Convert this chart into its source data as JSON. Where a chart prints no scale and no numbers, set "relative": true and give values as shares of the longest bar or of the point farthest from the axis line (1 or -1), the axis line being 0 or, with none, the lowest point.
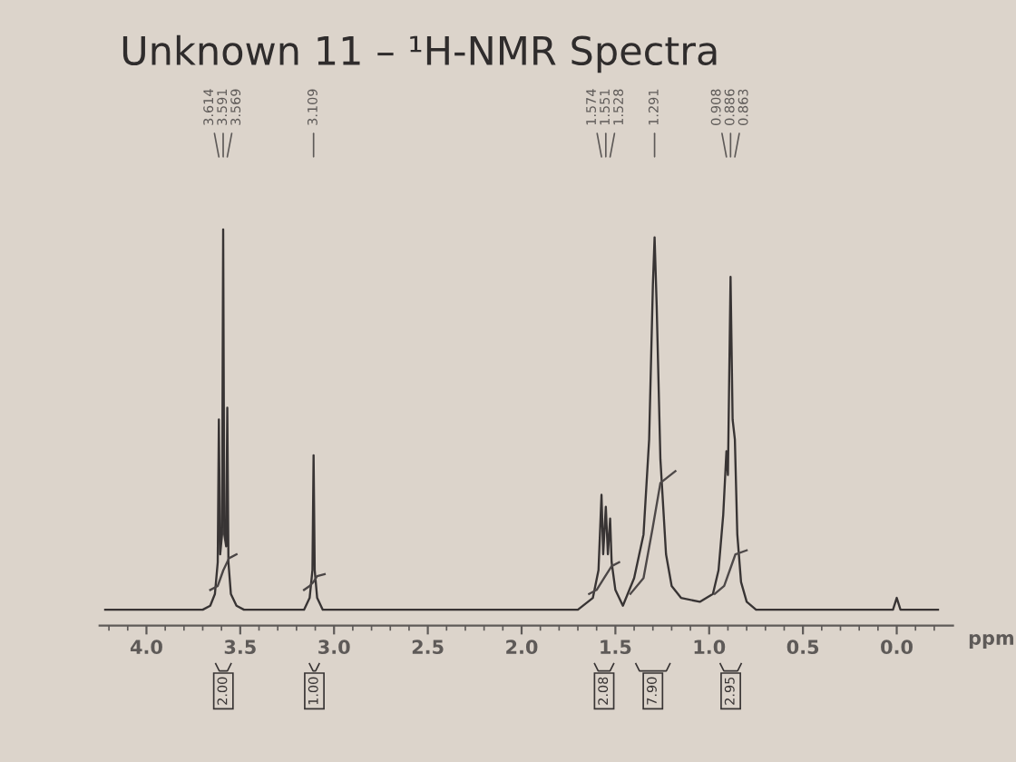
{
  "chart_data": {
    "type": "line",
    "title": "Unknown 11 – ¹H-NMR Spectra",
    "xlabel": "ppm",
    "relative": true,
    "xlim": [
      4.25,
      -0.3
    ],
    "xticks": [
      {
        "value": 4.2,
        "label": null
      },
      {
        "value": 4.1,
        "label": null
      },
      {
        "value": 4.0,
        "label": "4.0"
      },
      {
        "value": 3.9,
        "label": null
      },
      {
        "value": 3.8,
        "label": null
      },
      {
        "value": 3.7,
        "label": null
      },
      {
        "value": 3.6,
        "label": null
      },
      {
        "value": 3.5,
        "label": "3.5"
      },
      {
        "value": 3.4,
        "label": null
      },
      {
        "value": 3.3,
        "label": null
      },
      {
        "value": 3.2,
        "label": null
      },
      {
        "value": 3.1,
        "label": null
      },
      {
        "value": 3.0,
        "label": "3.0"
      },
      {
        "value": 2.9,
        "label": null
      },
      {
        "value": 2.8,
        "label": null
      },
      {
        "value": 2.7,
        "label": null
      },
      {
        "value": 2.6,
        "label": null
      },
      {
        "value": 2.5,
        "label": "2.5"
      },
      {
        "value": 2.4,
        "label": null
      },
      {
        "value": 2.3,
        "label": null
      },
      {
        "value": 2.2,
        "label": null
      },
      {
        "value": 2.1,
        "label": null
      },
      {
        "value": 2.0,
        "label": "2.0"
      },
      {
        "value": 1.9,
        "label": null
      },
      {
        "value": 1.8,
        "label": null
      },
      {
        "value": 1.7,
        "label": null
      },
      {
        "value": 1.6,
        "label": null
      },
      {
        "value": 1.5,
        "label": "1.5"
      },
      {
        "value": 1.4,
        "label": null
      },
      {
        "value": 1.3,
        "label": null
      },
      {
        "value": 1.2,
        "label": null
      },
      {
        "value": 1.1,
        "label": null
      },
      {
        "value": 1.0,
        "label": "1.0"
      },
      {
        "value": 0.9,
        "label": null
      },
      {
        "value": 0.8,
        "label": null
      },
      {
        "value": 0.7,
        "label": null
      },
      {
        "value": 0.6,
        "label": null
      },
      {
        "value": 0.5,
        "label": "0.5"
      },
      {
        "value": 0.4,
        "label": null
      },
      {
        "value": 0.3,
        "label": null
      },
      {
        "value": 0.2,
        "label": null
      },
      {
        "value": 0.1,
        "label": null
      },
      {
        "value": 0.0,
        "label": "0.0"
      },
      {
        "value": -0.1,
        "label": null
      },
      {
        "value": -0.2,
        "label": null
      }
    ],
    "series": [
      {
        "color": "#383434",
        "x": [
          4.22,
          3.7,
          3.66,
          3.635,
          3.62,
          3.614,
          3.607,
          3.597,
          3.591,
          3.585,
          3.575,
          3.569,
          3.563,
          3.55,
          3.52,
          3.48,
          3.16,
          3.13,
          3.115,
          3.109,
          3.103,
          3.09,
          3.06,
          1.7,
          1.62,
          1.59,
          1.574,
          1.565,
          1.551,
          1.54,
          1.528,
          1.52,
          1.5,
          1.46,
          1.4,
          1.35,
          1.32,
          1.3,
          1.291,
          1.28,
          1.26,
          1.23,
          1.2,
          1.15,
          1.05,
          0.98,
          0.95,
          0.925,
          0.908,
          0.9,
          0.886,
          0.875,
          0.863,
          0.85,
          0.83,
          0.8,
          0.75,
          0.02,
          0.0,
          -0.02,
          -0.22
        ],
        "values": [
          0.04,
          0.04,
          0.05,
          0.08,
          0.16,
          0.52,
          0.18,
          0.23,
          1.0,
          0.23,
          0.2,
          0.55,
          0.16,
          0.08,
          0.05,
          0.04,
          0.04,
          0.07,
          0.14,
          0.43,
          0.14,
          0.07,
          0.04,
          0.04,
          0.07,
          0.14,
          0.33,
          0.18,
          0.3,
          0.18,
          0.27,
          0.16,
          0.09,
          0.05,
          0.12,
          0.23,
          0.47,
          0.86,
          0.98,
          0.81,
          0.42,
          0.18,
          0.1,
          0.07,
          0.06,
          0.08,
          0.14,
          0.28,
          0.44,
          0.38,
          0.88,
          0.52,
          0.47,
          0.23,
          0.11,
          0.06,
          0.04,
          0.04,
          0.07,
          0.04,
          0.04
        ]
      },
      {
        "color": "#4a4545",
        "x": [
          3.66,
          3.62,
          3.59,
          3.56,
          3.52
        ],
        "values": [
          0.09,
          0.1,
          0.14,
          0.17,
          0.18
        ]
      },
      {
        "color": "#4b4646",
        "x": [
          3.16,
          3.13,
          3.11,
          3.09,
          3.05
        ],
        "values": [
          0.09,
          0.1,
          0.11,
          0.125,
          0.13
        ]
      },
      {
        "color": "#4c4747",
        "x": [
          1.64,
          1.6,
          1.56,
          1.52,
          1.48
        ],
        "values": [
          0.08,
          0.09,
          0.12,
          0.15,
          0.16
        ]
      },
      {
        "color": "#4d4848",
        "x": [
          1.42,
          1.35,
          1.3,
          1.26,
          1.18
        ],
        "values": [
          0.08,
          0.12,
          0.25,
          0.36,
          0.39
        ]
      },
      {
        "color": "#4e4949",
        "x": [
          0.97,
          0.92,
          0.89,
          0.86,
          0.8
        ],
        "values": [
          0.08,
          0.1,
          0.14,
          0.18,
          0.19
        ]
      }
    ],
    "annotations": [
      {
        "text": "3.614",
        "x": 3.614
      },
      {
        "text": "3.591",
        "x": 3.591
      },
      {
        "text": "3.569",
        "x": 3.569
      },
      {
        "text": "3.109",
        "x": 3.109
      },
      {
        "text": "1.574",
        "x": 1.574
      },
      {
        "text": "1.551",
        "x": 1.551
      },
      {
        "text": "1.528",
        "x": 1.528
      },
      {
        "text": "1.291",
        "x": 1.291
      },
      {
        "text": "0.908",
        "x": 0.908
      },
      {
        "text": "0.886",
        "x": 0.886
      },
      {
        "text": "0.863",
        "x": 0.863
      },
      "2.00",
      "1.00",
      "2.08",
      "7.90",
      "2.95"
    ]
  }
}
